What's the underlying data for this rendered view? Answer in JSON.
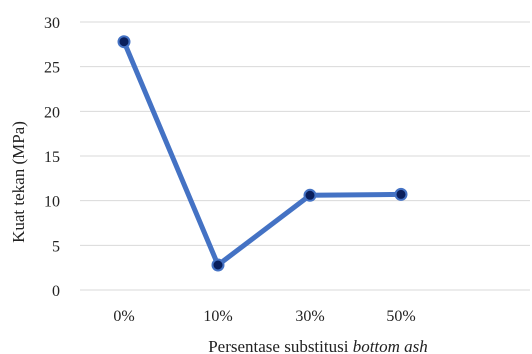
{
  "chart_data": {
    "type": "line",
    "categories": [
      "0%",
      "10%",
      "30%",
      "50%"
    ],
    "series": [
      {
        "values": [
          27.8,
          2.8,
          10.6,
          10.7
        ]
      }
    ],
    "y_ticks": [
      "0",
      "5",
      "10",
      "15",
      "20",
      "25",
      "30"
    ],
    "ylim": [
      0,
      30
    ],
    "ylabel": "Kuat tekan (MPa)",
    "xlabel": {
      "prefix": "Persentase substitusi ",
      "italic": "bottom ash"
    },
    "grid": true,
    "legend": "none",
    "colors": {
      "line": "#4472c4",
      "marker": "#0a1f5c",
      "grid": "#d9d9d9",
      "text": "#222222"
    }
  }
}
